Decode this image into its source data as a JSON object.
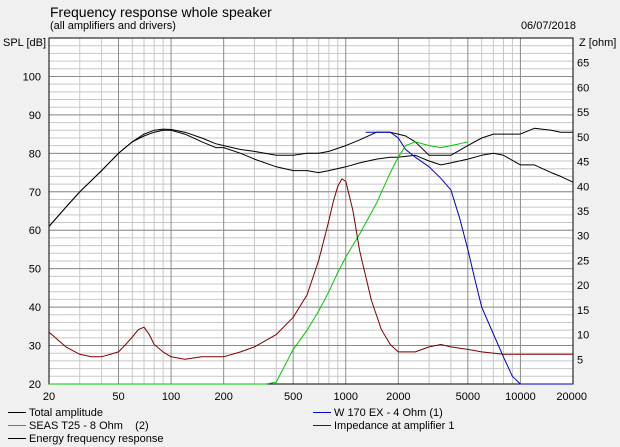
{
  "header": {
    "title": "Frequency response whole speaker",
    "subtitle": "(all amplifiers and drivers)",
    "date": "06/07/2018"
  },
  "chart_data": {
    "type": "line",
    "title": "Frequency response whole speaker",
    "subtitle": "(all amplifiers and drivers)",
    "xlabel": "",
    "ylabel": "SPL [dB]",
    "ylabel_right": "Z [ohm]",
    "x_scale": "log",
    "xlim": [
      20,
      20000
    ],
    "ylim": [
      20,
      110
    ],
    "ylim_right": [
      0,
      70
    ],
    "grid": true,
    "x_ticks": [
      20,
      50,
      100,
      200,
      500,
      1000,
      2000,
      5000,
      10000,
      20000
    ],
    "x_tick_labels": [
      "20",
      "50",
      "100",
      "200",
      "500",
      "1000",
      "2000",
      "5000",
      "10000",
      "20000"
    ],
    "y_ticks": [
      20,
      30,
      40,
      50,
      60,
      70,
      80,
      90,
      100
    ],
    "y_tick_labels": [
      "20",
      "30",
      "40",
      "50",
      "60",
      "70",
      "80",
      "90",
      "100"
    ],
    "y_ticks_right": [
      5,
      10,
      15,
      20,
      25,
      30,
      35,
      40,
      45,
      50,
      55,
      60,
      65
    ],
    "y_tick_labels_right": [
      "5",
      "10",
      "15",
      "20",
      "25",
      "30",
      "35",
      "40",
      "45",
      "50",
      "55",
      "60",
      "65"
    ],
    "legend_position": "bottom",
    "series": [
      {
        "name": "Total amplitude",
        "color": "#000000",
        "axis": "left",
        "x": [
          20,
          25,
          30,
          40,
          50,
          60,
          70,
          80,
          90,
          100,
          120,
          150,
          180,
          200,
          250,
          300,
          400,
          500,
          600,
          700,
          800,
          1000,
          1200,
          1500,
          1800,
          2000,
          2200,
          2500,
          3000,
          3500,
          4000,
          5000,
          6000,
          7000,
          8000,
          10000,
          12000,
          15000,
          17000,
          20000
        ],
        "y": [
          61,
          66,
          70,
          75.5,
          80,
          83,
          85,
          86,
          86.3,
          86.2,
          85.5,
          84,
          82.5,
          82,
          81,
          80.5,
          79.5,
          79.5,
          80,
          80,
          80.5,
          82,
          83.5,
          85.5,
          85.5,
          85,
          84.5,
          83,
          79.5,
          79.5,
          79.5,
          82,
          84,
          85,
          85,
          85,
          86.5,
          86,
          85.5,
          85.5
        ]
      },
      {
        "name": "Energy frequency response",
        "color": "#000000",
        "axis": "left",
        "x": [
          20,
          25,
          30,
          40,
          50,
          60,
          70,
          80,
          90,
          100,
          120,
          150,
          180,
          200,
          250,
          300,
          400,
          500,
          600,
          700,
          800,
          1000,
          1200,
          1500,
          1800,
          2000,
          2500,
          3000,
          3500,
          4000,
          5000,
          6000,
          7000,
          8000,
          10000,
          12000,
          15000,
          17000,
          20000
        ],
        "y": [
          61,
          66,
          70,
          75.5,
          80,
          83,
          84.5,
          85.5,
          86,
          86,
          85,
          83,
          81.5,
          81.5,
          80,
          78.5,
          76.5,
          75.5,
          75.5,
          75,
          75.5,
          76.5,
          77.5,
          78.5,
          79,
          79,
          79.5,
          78,
          77,
          77.5,
          78.5,
          79.5,
          80,
          79.5,
          77,
          77,
          75,
          74,
          72.5
        ]
      },
      {
        "name": "W 170 EX - 4 Ohm (1)",
        "color": "#0000c8",
        "axis": "left",
        "x": [
          1300,
          1500,
          1700,
          1800,
          2000,
          2200,
          2500,
          3000,
          3500,
          4000,
          4500,
          5000,
          5500,
          6000,
          7000,
          8000,
          9000,
          10000,
          12000,
          15000,
          20000
        ],
        "y": [
          85.5,
          85.5,
          85.5,
          85.5,
          84,
          81,
          79,
          76.5,
          73.5,
          70.5,
          63,
          55,
          47,
          40,
          33,
          27,
          22,
          20,
          20,
          20,
          20
        ]
      },
      {
        "name": "SEAS T25 - 8 Ohm    (2)",
        "color": "#00c800",
        "axis": "left",
        "x": [
          20,
          100,
          200,
          350,
          400,
          450,
          500,
          600,
          700,
          800,
          900,
          1000,
          1200,
          1500,
          1800,
          2000,
          2200,
          2500,
          3000,
          3500,
          4000,
          4500,
          5000
        ],
        "y": [
          20,
          20,
          20,
          20,
          20.5,
          25,
          29,
          34,
          39,
          44,
          49,
          53,
          59,
          67,
          75,
          79,
          82,
          83,
          82,
          81.5,
          82,
          82.5,
          83
        ]
      },
      {
        "name": "Impedance at amplifier 1",
        "color": "#800000",
        "axis": "right",
        "x": [
          20,
          25,
          30,
          35,
          40,
          50,
          55,
          60,
          65,
          70,
          75,
          80,
          90,
          100,
          120,
          150,
          180,
          200,
          250,
          300,
          400,
          500,
          600,
          700,
          800,
          850,
          900,
          950,
          1000,
          1100,
          1200,
          1400,
          1600,
          1800,
          2000,
          2500,
          3000,
          3500,
          4000,
          5000,
          6000,
          8000,
          10000,
          15000,
          20000
        ],
        "y": [
          10.5,
          7.5,
          6,
          5.5,
          5.5,
          6.5,
          8,
          9.5,
          11,
          11.5,
          10,
          8,
          6.5,
          5.5,
          5,
          5.5,
          5.5,
          5.5,
          6.5,
          7.5,
          10,
          13.5,
          18,
          25,
          33,
          37,
          40,
          41.5,
          41,
          35,
          27,
          17,
          11,
          8,
          6.5,
          6.5,
          7.5,
          8,
          7.5,
          7,
          6.5,
          6,
          6,
          6,
          6
        ]
      }
    ]
  },
  "legend": [
    {
      "label": "Total amplitude",
      "color": "#000000"
    },
    {
      "label": "W 170 EX - 4 Ohm (1)",
      "color": "#0000c8"
    },
    {
      "label": "SEAS T25 - 8 Ohm    (2)",
      "color": "#00c800"
    },
    {
      "label": "Impedance at amplifier 1",
      "color": "#800000"
    },
    {
      "label": "Energy frequency response",
      "color": "#000000"
    }
  ]
}
